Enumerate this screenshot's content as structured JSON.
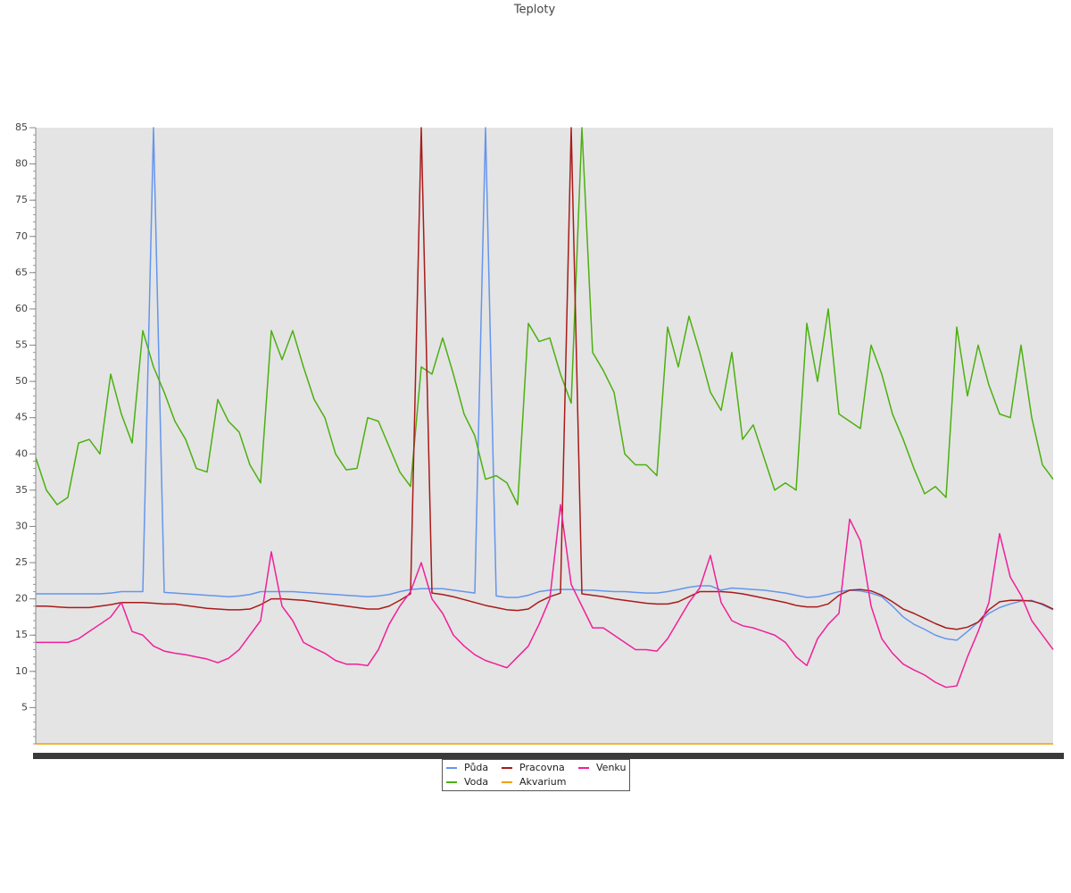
{
  "chart_data": {
    "type": "line",
    "title": "Teploty",
    "categories": [
      null,
      null,
      null,
      null,
      null,
      null,
      null,
      null,
      null,
      null,
      null,
      null,
      null,
      null,
      null,
      null,
      null,
      null,
      null,
      null,
      null,
      null,
      null,
      null,
      null,
      null,
      null,
      null,
      null,
      null,
      null,
      null,
      null,
      null,
      null,
      null,
      null,
      null,
      null,
      null,
      null,
      null,
      null,
      null,
      null,
      null,
      null,
      null,
      null,
      null,
      null,
      null,
      null,
      null,
      null,
      null,
      null,
      null,
      null,
      null,
      null,
      null,
      null,
      null,
      null,
      null,
      null,
      null,
      null,
      null,
      null,
      null,
      null,
      null,
      null,
      null,
      null,
      null,
      null,
      null,
      null,
      null,
      null,
      null,
      null,
      null,
      null,
      null,
      null,
      null,
      null,
      null,
      null,
      null,
      null,
      null
    ],
    "ylim": [
      0,
      85
    ],
    "yticks": [
      5,
      10,
      15,
      20,
      25,
      30,
      35,
      40,
      45,
      50,
      55,
      60,
      65,
      70,
      75,
      80,
      85
    ],
    "series": [
      {
        "name": "Půda",
        "color": "#6495ed",
        "values": [
          20.7,
          20.7,
          20.7,
          20.7,
          20.7,
          20.7,
          20.7,
          20.8,
          21,
          21,
          21,
          85,
          20.9,
          20.8,
          20.7,
          20.6,
          20.5,
          20.4,
          20.3,
          20.4,
          20.6,
          21,
          21,
          21,
          21,
          20.9,
          20.8,
          20.7,
          20.6,
          20.5,
          20.4,
          20.3,
          20.4,
          20.6,
          21,
          21.3,
          21.4,
          21.4,
          21.4,
          21.2,
          21,
          20.8,
          85,
          20.4,
          20.2,
          20.2,
          20.5,
          21,
          21.2,
          21.3,
          21.3,
          21.2,
          21.2,
          21.1,
          21,
          21,
          20.9,
          20.8,
          20.8,
          21,
          21.3,
          21.6,
          21.8,
          21.8,
          21.2,
          21.5,
          21.4,
          21.3,
          21.2,
          21,
          20.8,
          20.5,
          20.2,
          20.3,
          20.6,
          21,
          21.2,
          21.1,
          20.8,
          20.3,
          19,
          17.5,
          16.5,
          15.8,
          15,
          14.5,
          14.3,
          15.5,
          16.8,
          18,
          18.8,
          19.3,
          19.7,
          19.8,
          19.2,
          18.5
        ]
      },
      {
        "name": "Voda",
        "color": "#4cb010",
        "values": [
          39.5,
          35,
          33,
          34,
          41.5,
          42,
          40,
          51,
          45.5,
          41.5,
          57,
          52,
          48.5,
          44.5,
          42,
          38,
          37.5,
          47.5,
          44.5,
          43,
          38.5,
          36,
          57,
          53,
          57,
          52,
          47.5,
          45,
          40,
          37.8,
          38,
          45,
          44.5,
          41,
          37.5,
          35.5,
          52,
          51,
          56,
          51,
          45.5,
          42.5,
          36.5,
          37,
          36,
          33,
          58,
          55.5,
          56,
          51,
          47,
          85,
          54,
          51.5,
          48.5,
          40,
          38.5,
          38.5,
          37,
          57.5,
          52,
          59,
          54,
          48.5,
          46,
          54,
          42,
          44,
          39.5,
          35,
          36,
          35,
          58,
          50,
          60,
          45.5,
          44.5,
          43.5,
          55,
          51,
          45.5,
          42,
          38,
          34.5,
          35.5,
          34,
          57.5,
          48,
          55,
          49.5,
          45.5,
          45,
          55,
          45,
          38.5,
          36.5
        ]
      },
      {
        "name": "Pracovna",
        "color": "#aa1a1a",
        "values": [
          19,
          19,
          18.9,
          18.8,
          18.8,
          18.8,
          19,
          19.2,
          19.5,
          19.5,
          19.5,
          19.4,
          19.3,
          19.3,
          19.1,
          18.9,
          18.7,
          18.6,
          18.5,
          18.5,
          18.6,
          19.2,
          20,
          20,
          19.9,
          19.8,
          19.6,
          19.4,
          19.2,
          19,
          18.8,
          18.6,
          18.6,
          19,
          19.8,
          20.7,
          85,
          20.8,
          20.6,
          20.3,
          19.9,
          19.5,
          19.1,
          18.8,
          18.5,
          18.4,
          18.6,
          19.6,
          20.3,
          20.8,
          85,
          20.7,
          20.5,
          20.3,
          20,
          19.8,
          19.6,
          19.4,
          19.3,
          19.3,
          19.6,
          20.3,
          21,
          21,
          21,
          20.9,
          20.7,
          20.4,
          20.1,
          19.8,
          19.5,
          19.1,
          18.9,
          18.9,
          19.3,
          20.5,
          21.2,
          21.3,
          21.1,
          20.5,
          19.6,
          18.6,
          18,
          17.3,
          16.6,
          16,
          15.8,
          16.1,
          16.8,
          18.5,
          19.6,
          19.8,
          19.8,
          19.7,
          19.3,
          18.6
        ]
      },
      {
        "name": "Akvarium",
        "color": "#f0a000",
        "values": [
          0,
          0,
          0,
          0,
          0,
          0,
          0,
          0,
          0,
          0,
          0,
          0,
          0,
          0,
          0,
          0,
          0,
          0,
          0,
          0,
          0,
          0,
          0,
          0,
          0,
          0,
          0,
          0,
          0,
          0,
          0,
          0,
          0,
          0,
          0,
          0,
          0,
          0,
          0,
          0,
          0,
          0,
          0,
          0,
          0,
          0,
          0,
          0,
          0,
          0,
          0,
          0,
          0,
          0,
          0,
          0,
          0,
          0,
          0,
          0,
          0,
          0,
          0,
          0,
          0,
          0,
          0,
          0,
          0,
          0,
          0,
          0,
          0,
          0,
          0,
          0,
          0,
          0,
          0,
          0,
          0,
          0,
          0,
          0,
          0,
          0,
          0,
          0,
          0,
          0,
          0,
          0,
          0,
          0,
          0,
          0
        ]
      },
      {
        "name": "Venku",
        "color": "#f0209a",
        "values": [
          14,
          14,
          14,
          14,
          14.5,
          15.5,
          16.5,
          17.5,
          19.5,
          15.5,
          15,
          13.5,
          12.8,
          12.5,
          12.3,
          12,
          11.7,
          11.2,
          11.8,
          13,
          15,
          17,
          26.5,
          19,
          17,
          14,
          13.2,
          12.5,
          11.5,
          11,
          11,
          10.8,
          13,
          16.5,
          19,
          21,
          25,
          20,
          18,
          15,
          13.5,
          12.3,
          11.5,
          11,
          10.5,
          12,
          13.5,
          16.5,
          20,
          33,
          22,
          19,
          16,
          16,
          15,
          14,
          13,
          13,
          12.8,
          14.5,
          17,
          19.5,
          21.5,
          26,
          19.5,
          17,
          16.3,
          16,
          15.5,
          15,
          14,
          12,
          10.8,
          14.5,
          16.5,
          18,
          31,
          28,
          19,
          14.5,
          12.5,
          11,
          10.2,
          9.5,
          8.5,
          7.8,
          8,
          12,
          15.5,
          19.5,
          29,
          23,
          20.5,
          17,
          15,
          13
        ]
      }
    ],
    "grid": false,
    "legend": "bottom"
  }
}
